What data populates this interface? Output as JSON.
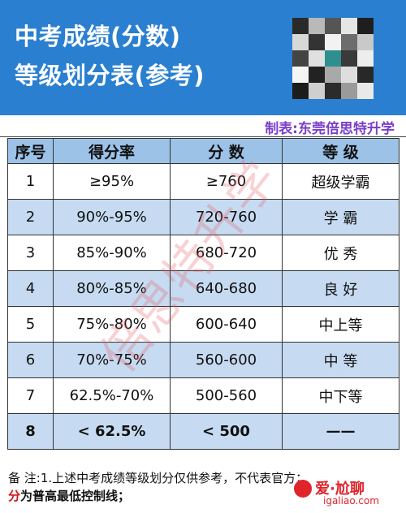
{
  "header": {
    "title_line1": "中考成绩(分数)",
    "title_line2": "等级划分表(参考)",
    "credit": "制表:东莞倍思特升学",
    "header_bg": "#2a7fd0",
    "credit_color": "#7a3ec9"
  },
  "table": {
    "columns": [
      "序号",
      "得分率",
      "分 数",
      "等 级"
    ],
    "rows": [
      {
        "no": "1",
        "rate": "≥95%",
        "score": "≥760",
        "grade": "超级学霸"
      },
      {
        "no": "2",
        "rate": "90%-95%",
        "score": "720-760",
        "grade": "学 霸"
      },
      {
        "no": "3",
        "rate": "85%-90%",
        "score": "680-720",
        "grade": "优 秀"
      },
      {
        "no": "4",
        "rate": "80%-85%",
        "score": "640-680",
        "grade": "良 好"
      },
      {
        "no": "5",
        "rate": "75%-80%",
        "score": "600-640",
        "grade": "中上等"
      },
      {
        "no": "6",
        "rate": "70%-75%",
        "score": "560-600",
        "grade": "中 等"
      },
      {
        "no": "7",
        "rate": "62.5%-70%",
        "score": "500-560",
        "grade": "中下等"
      },
      {
        "no": "8",
        "rate": "< 62.5%",
        "score": "< 500",
        "grade": "——"
      }
    ],
    "alt_row_color": "#c6dbf1",
    "head_color": "#9cc2e8"
  },
  "note": {
    "line1": "备 注:1.上述中考成绩等级划分仅供参考，不代表官方；",
    "line2_hl": "分",
    "line2_rest": "为普高最低控制线；"
  },
  "watermark": "倍思特升学",
  "brand": {
    "name": "爱·尬聊",
    "url": "igaliao.com",
    "color": "#e0242c"
  }
}
